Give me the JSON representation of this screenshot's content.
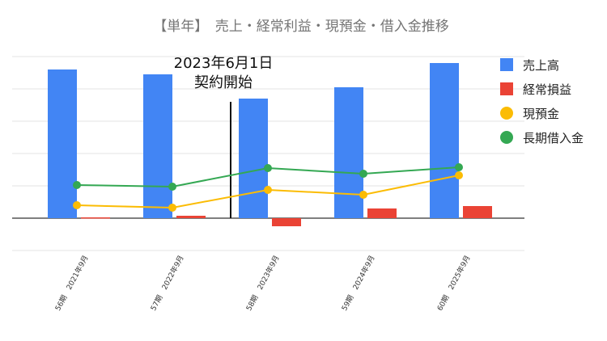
{
  "chart_data": {
    "type": "bar",
    "title": "【単年】　売上・経常利益・現預金・借入金推移",
    "categories": [
      "56期　2021年9月",
      "57期　2022年9月",
      "58期　2023年9月",
      "59期　2024年9月",
      "60期　2025年9月"
    ],
    "xlabel": "",
    "ylabel": "",
    "ylim": [
      -10,
      100
    ],
    "grid": true,
    "legend_position": "right",
    "annotation": {
      "lines": [
        "2023年6月1日",
        "契約開始"
      ],
      "x_between": [
        "57期　2022年9月",
        "58期　2023年9月"
      ]
    },
    "series": [
      {
        "name": "売上高",
        "type": "bar",
        "color": "#4285f4",
        "values": [
          92,
          89,
          74,
          81,
          96
        ]
      },
      {
        "name": "経常損益",
        "type": "bar",
        "color": "#ea4335",
        "values": [
          0.5,
          1.5,
          -5,
          6,
          7.5
        ]
      },
      {
        "name": "現預金",
        "type": "line",
        "color": "#fbbc04",
        "values": [
          8,
          6.5,
          17.5,
          14.5,
          26.5
        ]
      },
      {
        "name": "長期借入金",
        "type": "line",
        "color": "#34a853",
        "values": [
          20.5,
          19.5,
          31,
          27.5,
          31.5
        ]
      }
    ]
  }
}
